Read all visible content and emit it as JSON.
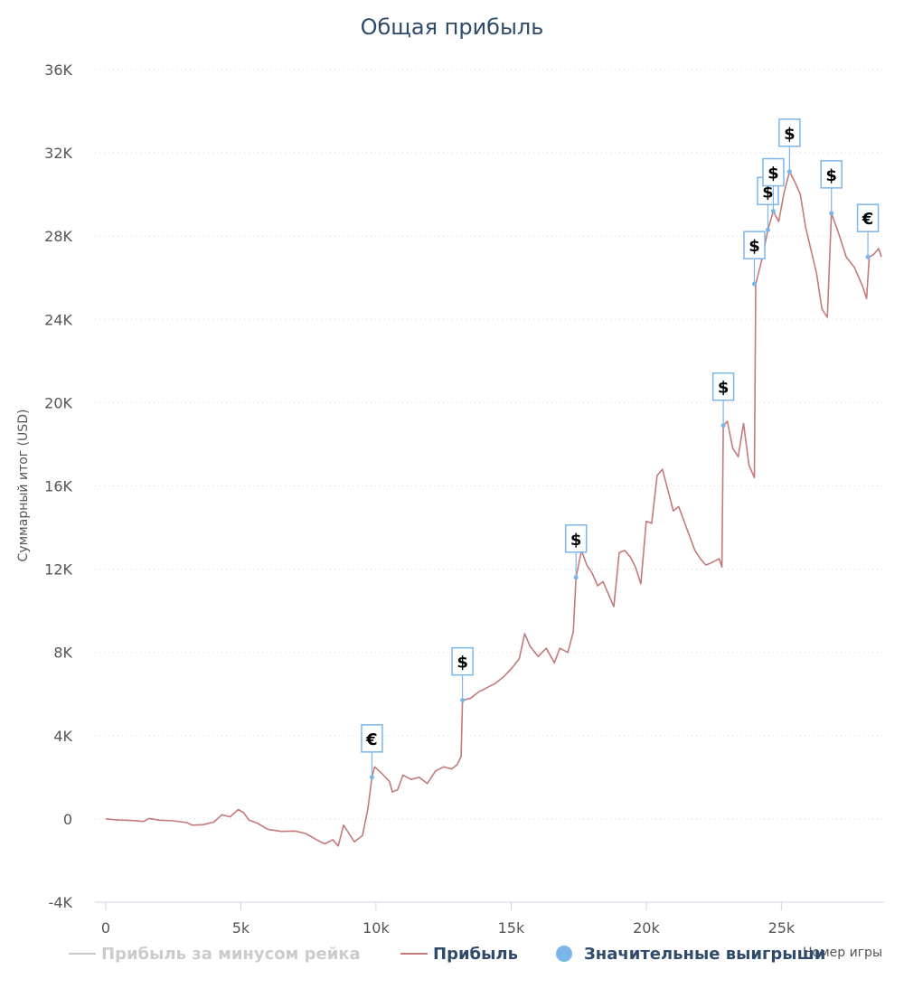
{
  "colors": {
    "title": "#2f4a6a",
    "profit_line": "#c47a7a",
    "rake_line": "#c8c8c8",
    "marker": "#7cb5ec",
    "grid": "#d8d8d8",
    "axis": "#ccd6eb",
    "tick_text": "#555555",
    "legend_active": "#2f4a6a",
    "legend_hidden": "#cccccc"
  },
  "chart_data": {
    "type": "line",
    "title": "Общая прибыль",
    "xlabel": "Номер игры",
    "ylabel": "Суммарный итог (USD)",
    "xlim": [
      -400,
      28800
    ],
    "ylim": [
      -4000,
      36000
    ],
    "x_ticks": [
      0,
      5000,
      10000,
      15000,
      20000,
      25000
    ],
    "x_tick_labels": [
      "0",
      "5k",
      "10k",
      "15k",
      "20k",
      "25k"
    ],
    "y_ticks": [
      -4000,
      0,
      4000,
      8000,
      12000,
      16000,
      20000,
      24000,
      28000,
      32000,
      36000
    ],
    "y_tick_labels": [
      "-4K",
      "0",
      "4K",
      "8K",
      "12K",
      "16K",
      "20K",
      "24K",
      "28K",
      "32K",
      "36K"
    ],
    "grid": true,
    "legend_position": "bottom",
    "legend": [
      {
        "label": "Прибыль за минусом рейка",
        "kind": "line",
        "visible": false
      },
      {
        "label": "Прибыль",
        "kind": "line",
        "visible": true
      },
      {
        "label": "Значительные выигрыши",
        "kind": "marker",
        "visible": true
      }
    ],
    "series": [
      {
        "name": "Прибыль",
        "points": [
          [
            0,
            0
          ],
          [
            500,
            -50
          ],
          [
            1000,
            -80
          ],
          [
            1400,
            -120
          ],
          [
            1600,
            20
          ],
          [
            2000,
            -60
          ],
          [
            2500,
            -90
          ],
          [
            3000,
            -180
          ],
          [
            3200,
            -300
          ],
          [
            3600,
            -280
          ],
          [
            4000,
            -150
          ],
          [
            4300,
            200
          ],
          [
            4600,
            100
          ],
          [
            4900,
            450
          ],
          [
            5100,
            300
          ],
          [
            5300,
            -50
          ],
          [
            5600,
            -200
          ],
          [
            6000,
            -500
          ],
          [
            6500,
            -600
          ],
          [
            7000,
            -580
          ],
          [
            7400,
            -700
          ],
          [
            7800,
            -1000
          ],
          [
            8100,
            -1200
          ],
          [
            8400,
            -1000
          ],
          [
            8600,
            -1300
          ],
          [
            8800,
            -300
          ],
          [
            9000,
            -700
          ],
          [
            9200,
            -1100
          ],
          [
            9500,
            -800
          ],
          [
            9700,
            500
          ],
          [
            9850,
            2000
          ],
          [
            9950,
            2500
          ],
          [
            10200,
            2200
          ],
          [
            10500,
            1800
          ],
          [
            10600,
            1300
          ],
          [
            10800,
            1400
          ],
          [
            11000,
            2100
          ],
          [
            11300,
            1900
          ],
          [
            11600,
            2000
          ],
          [
            11900,
            1700
          ],
          [
            12200,
            2300
          ],
          [
            12500,
            2500
          ],
          [
            12800,
            2400
          ],
          [
            13000,
            2600
          ],
          [
            13150,
            3000
          ],
          [
            13200,
            5700
          ],
          [
            13500,
            5800
          ],
          [
            13800,
            6100
          ],
          [
            14100,
            6300
          ],
          [
            14400,
            6500
          ],
          [
            14700,
            6800
          ],
          [
            15000,
            7200
          ],
          [
            15300,
            7700
          ],
          [
            15500,
            8900
          ],
          [
            15700,
            8300
          ],
          [
            16000,
            7800
          ],
          [
            16300,
            8200
          ],
          [
            16600,
            7500
          ],
          [
            16800,
            8200
          ],
          [
            17100,
            8000
          ],
          [
            17300,
            9000
          ],
          [
            17400,
            11600
          ],
          [
            17600,
            12900
          ],
          [
            17800,
            12200
          ],
          [
            18000,
            11800
          ],
          [
            18200,
            11200
          ],
          [
            18400,
            11400
          ],
          [
            18600,
            10800
          ],
          [
            18800,
            10200
          ],
          [
            19000,
            12800
          ],
          [
            19200,
            12900
          ],
          [
            19400,
            12600
          ],
          [
            19600,
            12100
          ],
          [
            19800,
            11300
          ],
          [
            20000,
            14300
          ],
          [
            20200,
            14200
          ],
          [
            20400,
            16500
          ],
          [
            20600,
            16800
          ],
          [
            20800,
            15800
          ],
          [
            21000,
            14800
          ],
          [
            21200,
            15000
          ],
          [
            21400,
            14300
          ],
          [
            21600,
            13600
          ],
          [
            21800,
            12900
          ],
          [
            22000,
            12500
          ],
          [
            22200,
            12200
          ],
          [
            22400,
            12300
          ],
          [
            22700,
            12500
          ],
          [
            22800,
            12100
          ],
          [
            22850,
            18900
          ],
          [
            23000,
            19100
          ],
          [
            23200,
            17800
          ],
          [
            23400,
            17400
          ],
          [
            23600,
            19000
          ],
          [
            23800,
            17000
          ],
          [
            24000,
            16400
          ],
          [
            24050,
            25700
          ],
          [
            24300,
            27000
          ],
          [
            24500,
            28300
          ],
          [
            24700,
            29200
          ],
          [
            24900,
            28700
          ],
          [
            25100,
            30100
          ],
          [
            25300,
            31100
          ],
          [
            25500,
            30600
          ],
          [
            25700,
            30000
          ],
          [
            25900,
            28400
          ],
          [
            26100,
            27300
          ],
          [
            26300,
            26200
          ],
          [
            26500,
            24500
          ],
          [
            26700,
            24100
          ],
          [
            26850,
            29100
          ],
          [
            27100,
            28200
          ],
          [
            27400,
            27000
          ],
          [
            27700,
            26500
          ],
          [
            28000,
            25600
          ],
          [
            28150,
            25000
          ],
          [
            28250,
            27000
          ],
          [
            28400,
            27100
          ],
          [
            28600,
            27400
          ],
          [
            28700,
            27000
          ]
        ]
      }
    ],
    "markers": [
      {
        "label": "€",
        "x": 9850,
        "y": 2000
      },
      {
        "label": "$",
        "x": 13200,
        "y": 5700
      },
      {
        "label": "$",
        "x": 17400,
        "y": 11600
      },
      {
        "label": "$",
        "x": 22850,
        "y": 18900
      },
      {
        "label": "$",
        "x": 24000,
        "y": 25700
      },
      {
        "label": "$",
        "x": 24500,
        "y": 28300
      },
      {
        "label": "$",
        "x": 24700,
        "y": 29200
      },
      {
        "label": "$",
        "x": 25300,
        "y": 31100
      },
      {
        "label": "$",
        "x": 26850,
        "y": 29100
      },
      {
        "label": "€",
        "x": 28200,
        "y": 27000
      }
    ]
  }
}
